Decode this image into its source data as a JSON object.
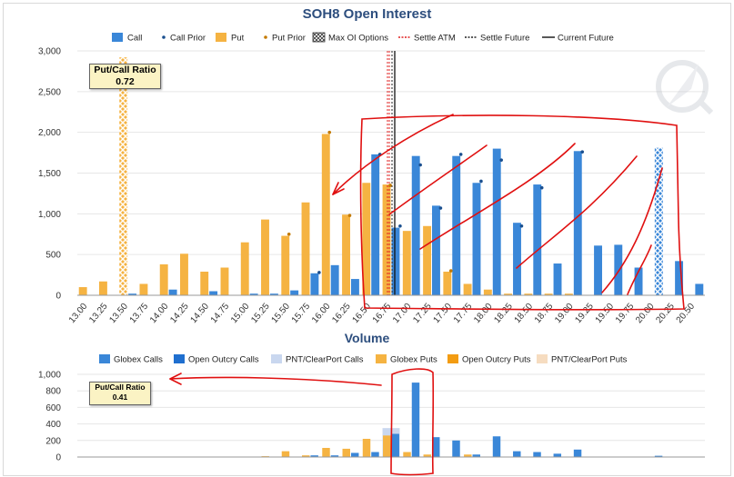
{
  "oi_chart": {
    "title": "SOH8 Open Interest",
    "legend": [
      "Call",
      "Call Prior",
      "Put",
      "Put Prior",
      "Max OI Options",
      "Settle ATM",
      "Settle Future",
      "Current Future"
    ],
    "put_call_ratio": {
      "label": "Put/Call Ratio",
      "value": "0.72"
    }
  },
  "volume_chart": {
    "title": "Volume",
    "legend": [
      "Globex Calls",
      "Open Outcry Calls",
      "PNT/ClearPort Calls",
      "Globex Puts",
      "Open Outcry Puts",
      "PNT/ClearPort Puts"
    ],
    "put_call_ratio": {
      "label": "Put/Call Ratio",
      "value": "0.41"
    }
  },
  "colors": {
    "call": "#3a87d8",
    "put": "#f5b342",
    "dot": "#1a4f8f",
    "prior_put": "#c47a00",
    "settle_atm": "#e02020",
    "settle_future": "#222222",
    "current_future": "#111111",
    "vol_oo_calls": "#1f6fcf",
    "vol_pnt_calls": "#c9d7ef",
    "vol_oo_puts": "#f39c12",
    "vol_pnt_puts": "#f6dcc0",
    "annotation": "#e01010",
    "max_oi_hatch": "#f5b342"
  },
  "chart_data": [
    {
      "type": "bar",
      "title": "SOH8 Open Interest",
      "categories": [
        "13.00",
        "13.25",
        "13.50",
        "13.75",
        "14.00",
        "14.25",
        "14.50",
        "14.75",
        "15.00",
        "15.25",
        "15.50",
        "15.75",
        "16.00",
        "16.25",
        "16.50",
        "16.75",
        "17.00",
        "17.25",
        "17.50",
        "17.75",
        "18.00",
        "18.25",
        "18.50",
        "18.75",
        "19.00",
        "19.25",
        "19.50",
        "19.75",
        "20.00",
        "20.25",
        "20.50"
      ],
      "ylim": [
        0,
        3000
      ],
      "yticks": [
        "0",
        "500",
        "1,000",
        "1,500",
        "2,000",
        "2,500",
        "3,000"
      ],
      "grid": true,
      "legend_position": "top",
      "series": [
        {
          "name": "Call",
          "values": [
            0,
            0,
            20,
            0,
            70,
            0,
            50,
            0,
            20,
            20,
            60,
            270,
            370,
            200,
            1730,
            830,
            1710,
            1100,
            1710,
            1380,
            1800,
            890,
            1360,
            390,
            1770,
            610,
            620,
            340,
            1810,
            420,
            140
          ]
        },
        {
          "name": "Call Prior",
          "values": [
            null,
            null,
            null,
            null,
            null,
            null,
            null,
            null,
            null,
            null,
            null,
            280,
            null,
            null,
            1730,
            850,
            1600,
            1070,
            1730,
            1400,
            1660,
            850,
            1320,
            null,
            1760,
            null,
            null,
            null,
            null,
            null,
            null
          ]
        },
        {
          "name": "Put",
          "values": [
            100,
            170,
            2920,
            140,
            380,
            510,
            290,
            340,
            650,
            930,
            730,
            1140,
            1980,
            990,
            1380,
            1360,
            790,
            850,
            290,
            140,
            70,
            20,
            20,
            20,
            20,
            0,
            0,
            0,
            0,
            0,
            0
          ]
        },
        {
          "name": "Put Prior",
          "values": [
            null,
            null,
            null,
            null,
            null,
            null,
            null,
            null,
            null,
            null,
            750,
            null,
            2000,
            980,
            null,
            1350,
            null,
            null,
            300,
            null,
            null,
            null,
            null,
            null,
            null,
            null,
            null,
            null,
            null,
            null,
            null
          ]
        }
      ],
      "max_oi": {
        "put": "13.50",
        "call": "20.00"
      },
      "settle_atm": "16.75",
      "settle_future": "16.75",
      "current_future": "16.75"
    },
    {
      "type": "bar",
      "title": "Volume",
      "ylim": [
        0,
        1000
      ],
      "yticks": [
        "0",
        "200",
        "400",
        "600",
        "800",
        "1,000"
      ],
      "grid": true,
      "legend_position": "top",
      "series": [
        {
          "name": "Globex Calls",
          "values": [
            0,
            0,
            0,
            0,
            0,
            0,
            0,
            0,
            0,
            0,
            0,
            20,
            20,
            50,
            60,
            280,
            900,
            240,
            200,
            30,
            250,
            70,
            60,
            40,
            90,
            0,
            0,
            0,
            15,
            0,
            0
          ]
        },
        {
          "name": "PNT/ClearPort Calls",
          "values": [
            0,
            0,
            0,
            0,
            0,
            0,
            0,
            0,
            0,
            0,
            0,
            0,
            0,
            0,
            0,
            350,
            0,
            0,
            0,
            0,
            0,
            0,
            0,
            0,
            0,
            0,
            0,
            0,
            0,
            0,
            0
          ]
        },
        {
          "name": "Globex Puts",
          "values": [
            0,
            0,
            0,
            0,
            0,
            0,
            0,
            0,
            0,
            10,
            70,
            20,
            110,
            100,
            220,
            260,
            60,
            30,
            0,
            30,
            0,
            0,
            0,
            0,
            0,
            0,
            0,
            0,
            0,
            0,
            0
          ]
        }
      ]
    }
  ]
}
